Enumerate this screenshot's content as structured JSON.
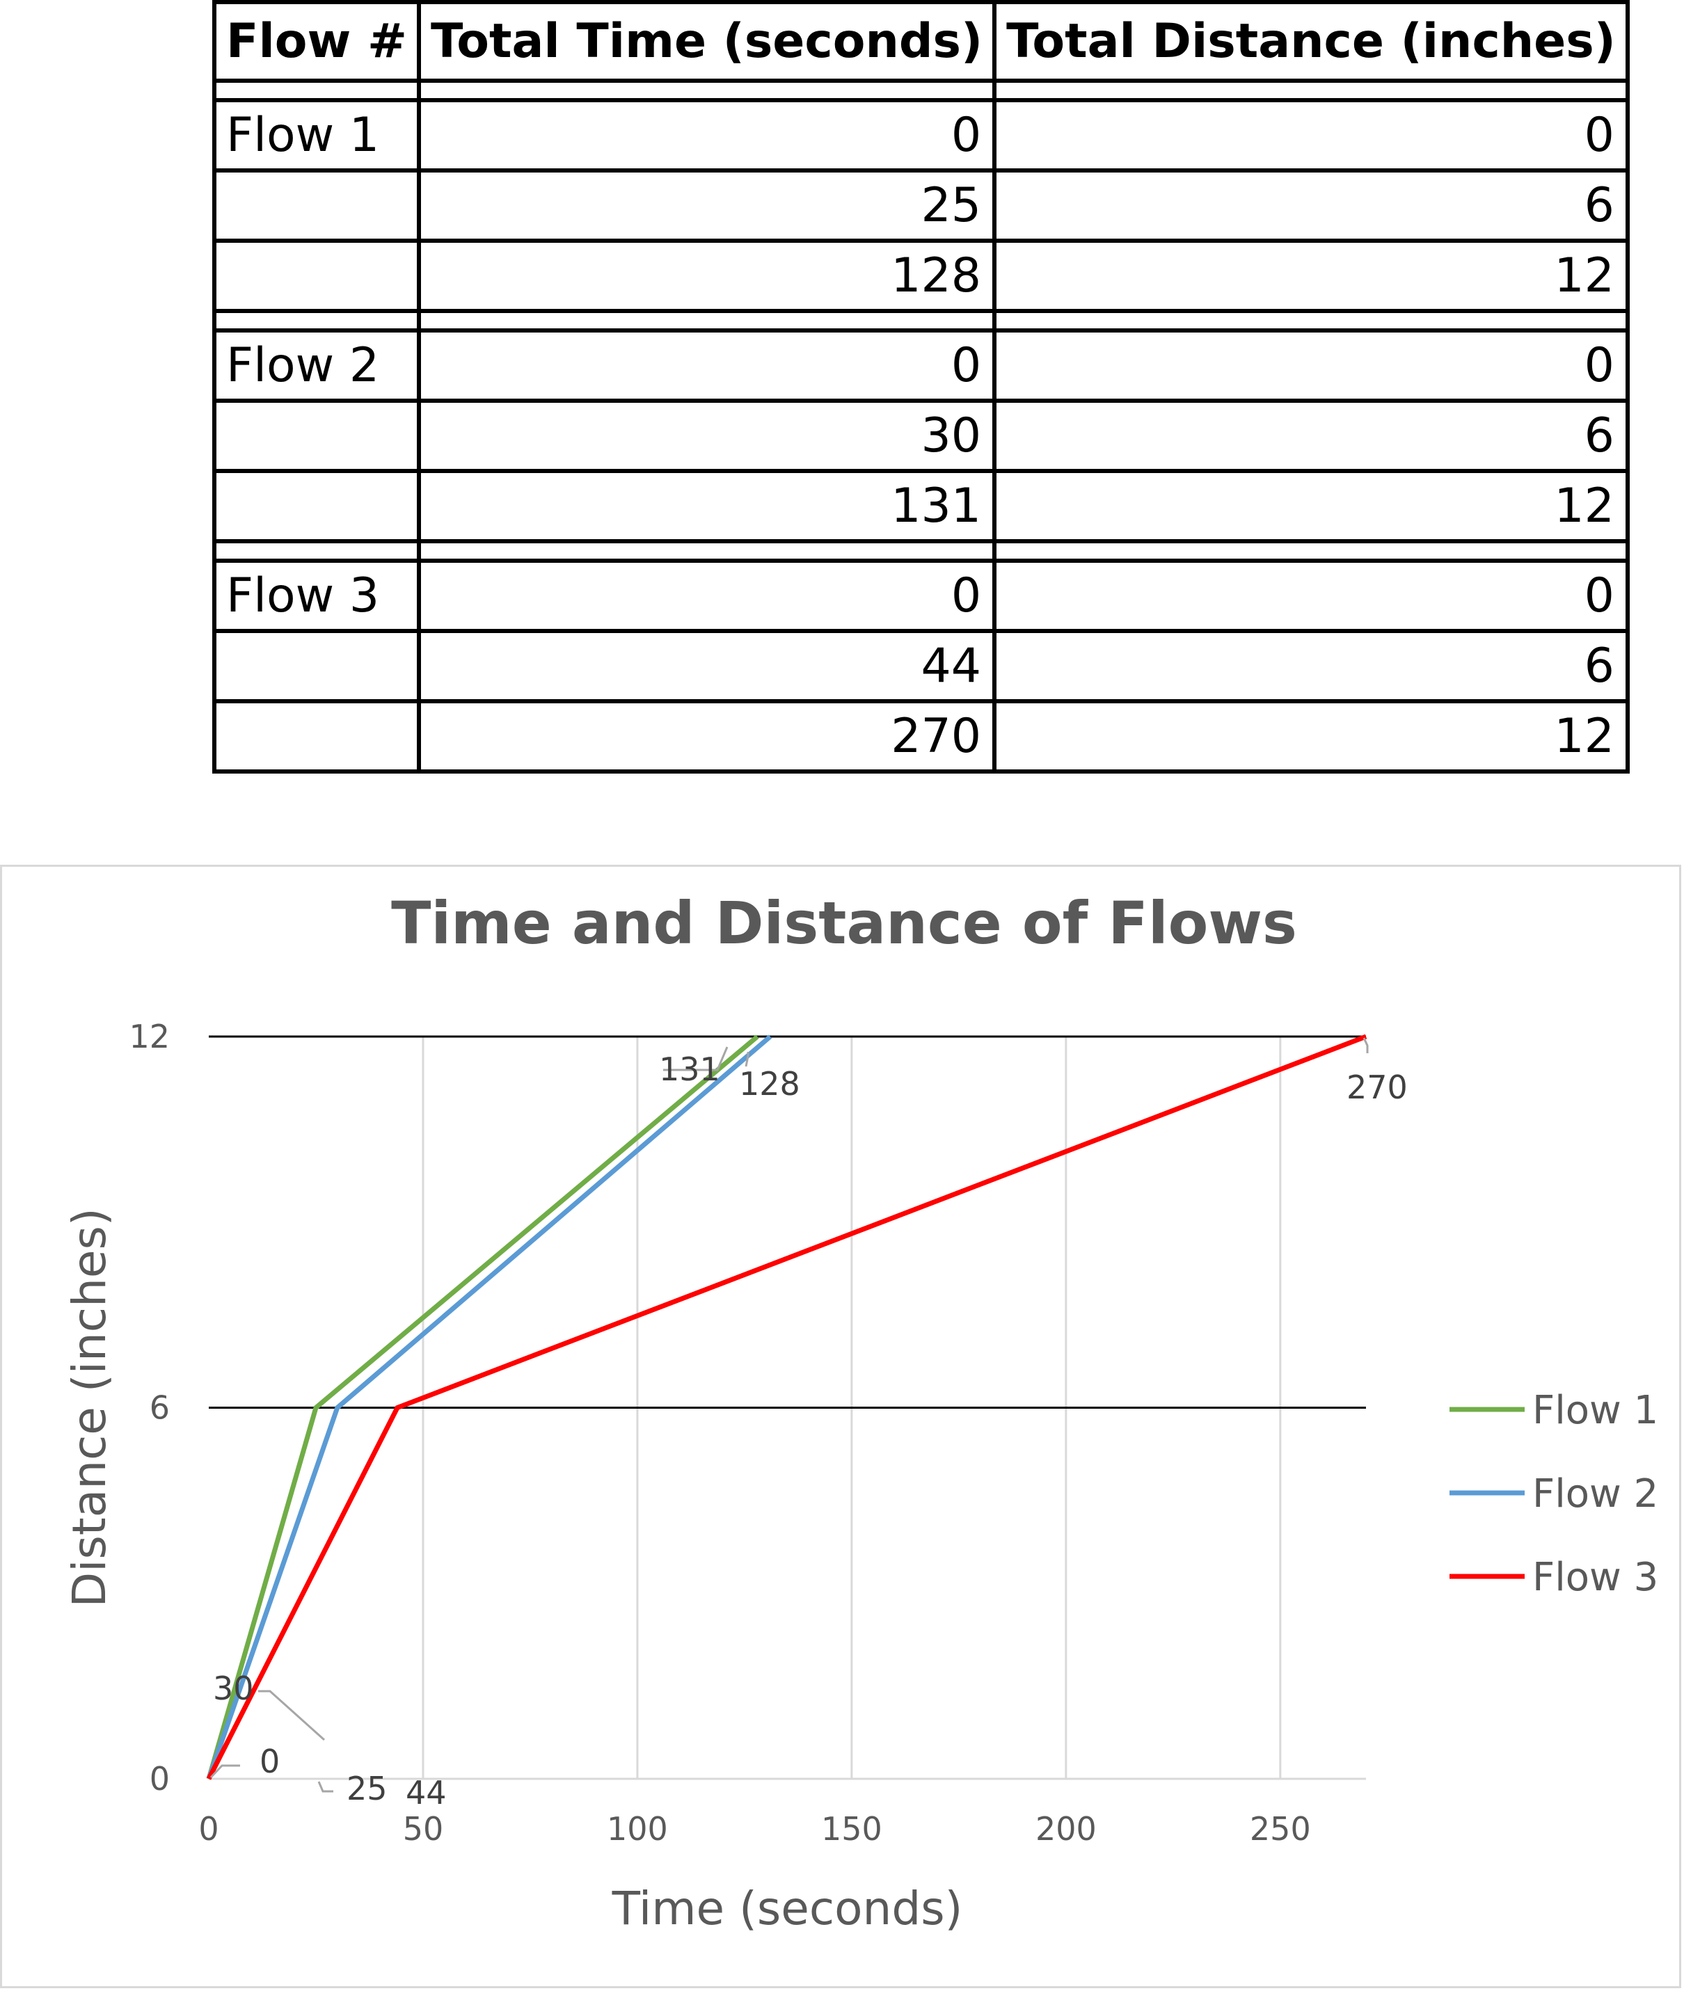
{
  "table": {
    "headers": [
      "Flow #",
      "Total Time (seconds)",
      "Total Distance (inches)"
    ],
    "groups": [
      {
        "label": "Flow 1",
        "rows": [
          {
            "time": "0",
            "distance": "0"
          },
          {
            "time": "25",
            "distance": "6"
          },
          {
            "time": "128",
            "distance": "12"
          }
        ]
      },
      {
        "label": "Flow 2",
        "rows": [
          {
            "time": "0",
            "distance": "0"
          },
          {
            "time": "30",
            "distance": "6"
          },
          {
            "time": "131",
            "distance": "12"
          }
        ]
      },
      {
        "label": "Flow 3",
        "rows": [
          {
            "time": "0",
            "distance": "0"
          },
          {
            "time": "44",
            "distance": "6"
          },
          {
            "time": "270",
            "distance": "12"
          }
        ]
      }
    ]
  },
  "chart_data": {
    "type": "line",
    "title": "Time and Distance of Flows",
    "xlabel": "Time (seconds)",
    "ylabel": "Distance (inches)",
    "xlim": [
      0,
      270
    ],
    "ylim": [
      0,
      12
    ],
    "xticks": [
      0,
      50,
      100,
      150,
      200,
      250
    ],
    "yticks": [
      0,
      6,
      12
    ],
    "x_grid": true,
    "y_grid": true,
    "legend_position": "right",
    "series": [
      {
        "name": "Flow 1",
        "color": "#70ad47",
        "x": [
          0,
          25,
          128
        ],
        "y": [
          0,
          6,
          12
        ]
      },
      {
        "name": "Flow 2",
        "color": "#5b9bd5",
        "x": [
          0,
          30,
          131
        ],
        "y": [
          0,
          6,
          12
        ]
      },
      {
        "name": "Flow 3",
        "color": "#ff0000",
        "x": [
          0,
          44,
          270
        ],
        "y": [
          0,
          6,
          12
        ]
      }
    ],
    "data_labels": [
      "0",
      "30",
      "25",
      "44",
      "131",
      "128",
      "270"
    ]
  }
}
